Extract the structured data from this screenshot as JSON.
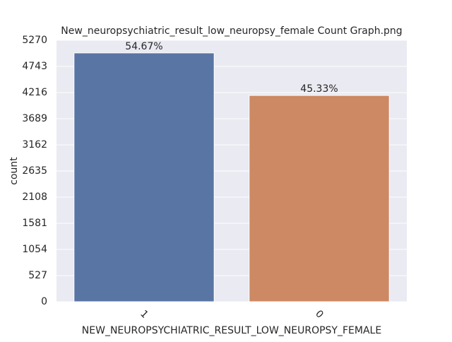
{
  "chart_data": {
    "type": "bar",
    "title": "New_neuropsychiatric_result_low_neuropsy_female Count Graph.png",
    "x_label": "NEW_NEUROPSYCHIATRIC_RESULT_LOW_NEUROPSY_FEMALE",
    "y_label": "count",
    "categories": [
      "1",
      "0"
    ],
    "values": [
      5015,
      4158
    ],
    "annotations": [
      "54.67%",
      "45.33%"
    ],
    "colors": [
      "#5975a4",
      "#cc8963"
    ],
    "ylim": [
      0,
      5270
    ],
    "yticks": [
      0,
      527,
      1054,
      1581,
      2108,
      2635,
      3162,
      3689,
      4216,
      4743,
      5270
    ],
    "grid": true
  }
}
